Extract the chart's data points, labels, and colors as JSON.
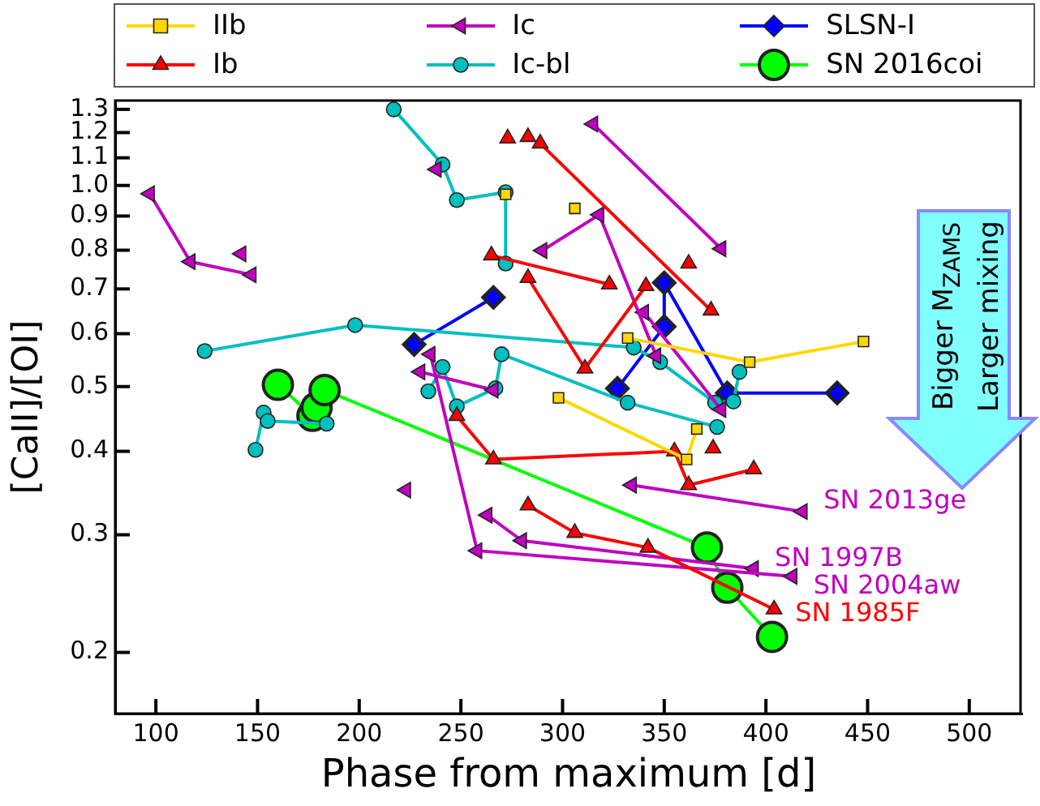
{
  "chart_data": {
    "type": "line",
    "xlabel": "Phase from maximum [d]",
    "ylabel": "[CaII]/[OI]",
    "log": "y",
    "grid": false,
    "legend": "top",
    "xlim": [
      80,
      526
    ],
    "xticks": [
      100,
      150,
      200,
      250,
      300,
      350,
      400,
      450,
      500
    ],
    "ylim": [
      0.162,
      1.34
    ],
    "yticks": [
      0.2,
      0.3,
      0.4,
      0.5,
      0.6,
      0.7,
      0.8,
      0.9,
      {
        "value": 1,
        "label": "1.0"
      },
      1.1,
      1.2,
      1.3
    ],
    "annotations": [
      "Bigger M$_{ZAMS}$",
      "Larger mixing",
      {
        "text": "SN 2013ge",
        "x": 418,
        "y": 0.325
      },
      {
        "text": "SN 1997B",
        "x": 394,
        "y": 0.267
      },
      {
        "text": "SN 2004aw",
        "x": 413,
        "y": 0.26
      },
      {
        "text": "SN 1985F",
        "x": 404,
        "y": 0.232
      }
    ],
    "series": [
      {
        "name": "IIb",
        "color": "#ffd700",
        "marker": "square",
        "x": [
          332,
          392,
          448
        ],
        "values": [
          0.591,
          0.544,
          0.584
        ]
      },
      {
        "color": "#ffd700",
        "marker": "square",
        "x": [
          306
        ],
        "values": [
          0.924
        ]
      },
      {
        "color": "#ffd700",
        "marker": "square",
        "x": [
          298,
          361,
          366
        ],
        "values": [
          0.481,
          0.389,
          0.432
        ]
      },
      {
        "color": "#ffd700",
        "marker": "square",
        "x": [
          272
        ],
        "values": [
          0.97
        ]
      },
      {
        "name": "Ib",
        "color": "#ff0000",
        "marker": "triangle",
        "x": [
          289,
          373
        ],
        "values": [
          1.156,
          0.65
        ]
      },
      {
        "color": "#ff0000",
        "marker": "triangle",
        "x": [
          273
        ],
        "values": [
          1.176
        ]
      },
      {
        "color": "#ff0000",
        "marker": "triangle",
        "x": [
          283
        ],
        "values": [
          1.182
        ]
      },
      {
        "color": "#ff0000",
        "marker": "triangle",
        "x": [
          362
        ],
        "values": [
          0.764
        ]
      },
      {
        "color": "#ff0000",
        "marker": "triangle",
        "x": [
          265,
          323
        ],
        "values": [
          0.786,
          0.711
        ]
      },
      {
        "color": "#ff0000",
        "marker": "triangle",
        "x": [
          283,
          311,
          341
        ],
        "values": [
          0.727,
          0.532,
          0.707
        ]
      },
      {
        "color": "#ff0000",
        "marker": "triangle",
        "x": [
          248,
          266,
          355,
          362,
          394
        ],
        "values": [
          0.452,
          0.389,
          0.4,
          0.356,
          0.376
        ]
      },
      {
        "color": "#ff0000",
        "marker": "triangle",
        "x": [
          374
        ],
        "values": [
          0.404
        ]
      },
      {
        "color": "#ff0000",
        "marker": "triangle",
        "x": [
          283,
          306,
          342,
          404
        ],
        "values": [
          0.332,
          0.302,
          0.287,
          0.232
        ]
      },
      {
        "name": "Ic",
        "color": "#bf00bf",
        "marker": "triangle-left",
        "x": [
          97,
          117,
          147
        ],
        "values": [
          0.972,
          0.769,
          0.735
        ]
      },
      {
        "color": "#bf00bf",
        "marker": "triangle-left",
        "x": [
          142
        ],
        "values": [
          0.79
        ]
      },
      {
        "color": "#bf00bf",
        "marker": "triangle-left",
        "x": [
          238
        ],
        "values": [
          1.057
        ]
      },
      {
        "color": "#bf00bf",
        "marker": "triangle-left",
        "x": [
          315,
          378
        ],
        "values": [
          1.236,
          0.804
        ]
      },
      {
        "color": "#bf00bf",
        "marker": "triangle-left",
        "x": [
          290,
          318,
          346
        ],
        "values": [
          0.799,
          0.904,
          0.556
        ]
      },
      {
        "color": "#bf00bf",
        "marker": "triangle-left",
        "x": [
          340,
          378
        ],
        "values": [
          0.646,
          0.462
        ]
      },
      {
        "color": "#bf00bf",
        "marker": "triangle-left",
        "x": [
          235,
          258,
          413
        ],
        "values": [
          0.559,
          0.284,
          0.26
        ]
      },
      {
        "color": "#bf00bf",
        "marker": "triangle-left",
        "x": [
          230,
          266
        ],
        "values": [
          0.526,
          0.494
        ]
      },
      {
        "color": "#bf00bf",
        "marker": "triangle-left",
        "x": [
          334,
          418
        ],
        "values": [
          0.356,
          0.325
        ]
      },
      {
        "color": "#bf00bf",
        "marker": "triangle-left",
        "x": [
          263,
          280,
          394
        ],
        "values": [
          0.321,
          0.294,
          0.267
        ]
      },
      {
        "color": "#bf00bf",
        "marker": "triangle-left",
        "x": [
          223
        ],
        "values": [
          0.35
        ]
      },
      {
        "name": "Ic-bl",
        "color": "#00bfbf",
        "marker": "circle",
        "x": [
          217,
          241,
          248,
          272,
          272
        ],
        "values": [
          1.3,
          1.075,
          0.951,
          0.977,
          0.764
        ]
      },
      {
        "color": "#00bfbf",
        "marker": "circle",
        "x": [
          124,
          198,
          335,
          348,
          375,
          384,
          387
        ],
        "values": [
          0.565,
          0.618,
          0.572,
          0.544,
          0.473,
          0.475,
          0.526
        ]
      },
      {
        "color": "#00bfbf",
        "marker": "circle",
        "x": [
          149,
          153,
          155,
          184
        ],
        "values": [
          0.402,
          0.457,
          0.444,
          0.44
        ]
      },
      {
        "color": "#00bfbf",
        "marker": "circle",
        "x": [
          234,
          241,
          248,
          267,
          270,
          332,
          376
        ],
        "values": [
          0.492,
          0.535,
          0.467,
          0.497,
          0.559,
          0.473,
          0.435
        ]
      },
      {
        "name": "SLSN-I",
        "color": "#0000ff",
        "marker": "diamond",
        "x": [
          227,
          266
        ],
        "values": [
          0.578,
          0.68
        ]
      },
      {
        "color": "#0000ff",
        "marker": "diamond",
        "x": [
          327,
          350,
          350,
          381,
          435
        ],
        "values": [
          0.497,
          0.615,
          0.715,
          0.489,
          0.489
        ]
      },
      {
        "name": "SN 2016coi",
        "color": "#00ff00",
        "marker": "circle",
        "x": [
          160,
          177,
          179,
          183,
          371,
          381,
          403
        ],
        "values": [
          0.503,
          0.452,
          0.465,
          0.494,
          0.287,
          0.25,
          0.211
        ]
      }
    ]
  }
}
